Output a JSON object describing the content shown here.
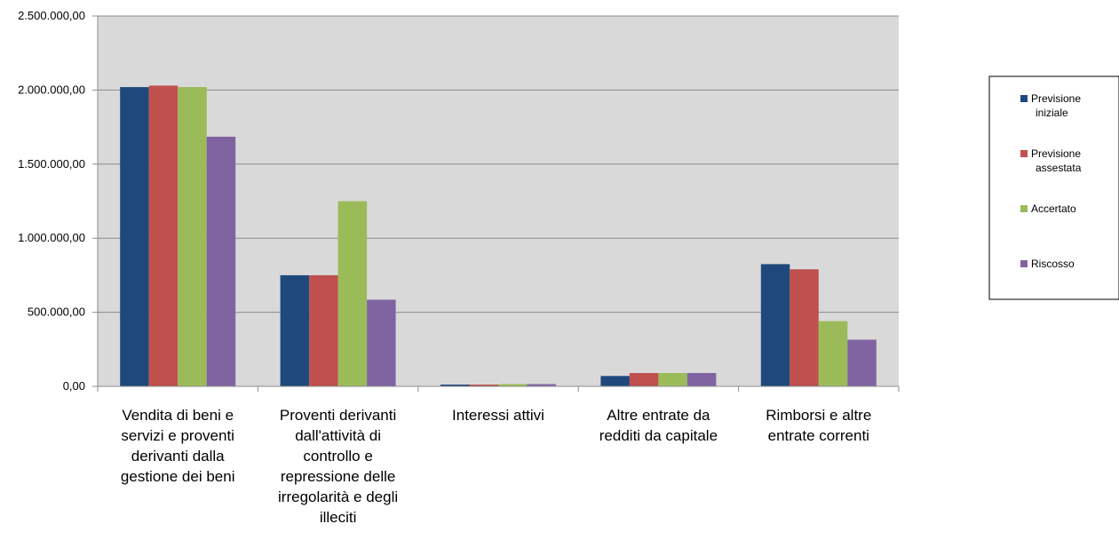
{
  "chart_data": {
    "type": "bar",
    "title": "",
    "xlabel": "",
    "ylabel": "",
    "ylim": [
      0,
      2500000
    ],
    "yticks": [
      {
        "value": 0,
        "label": "0,00"
      },
      {
        "value": 500000,
        "label": "500.000,00"
      },
      {
        "value": 1000000,
        "label": "1.000.000,00"
      },
      {
        "value": 1500000,
        "label": "1.500.000,00"
      },
      {
        "value": 2000000,
        "label": "2.000.000,00"
      },
      {
        "value": 2500000,
        "label": "2.500.000,00"
      }
    ],
    "categories": [
      [
        "Vendita di beni e",
        "servizi e proventi",
        "derivanti dalla",
        "gestione dei beni"
      ],
      [
        "Proventi derivanti",
        "dall'attività di",
        "controllo e",
        "repressione delle",
        "irregolarità e degli",
        "illeciti"
      ],
      [
        "Interessi attivi"
      ],
      [
        "Altre entrate da",
        "redditi da capitale"
      ],
      [
        "Rimborsi e altre",
        "entrate correnti"
      ]
    ],
    "series": [
      {
        "name": [
          "Previsione",
          "iniziale"
        ],
        "color": "#1F497D",
        "values": [
          2020000,
          750000,
          12000,
          70000,
          825000
        ]
      },
      {
        "name": [
          "Previsione",
          "assestata"
        ],
        "color": "#C0504D",
        "values": [
          2030000,
          750000,
          12000,
          90000,
          790000
        ]
      },
      {
        "name": [
          "Accertato"
        ],
        "color": "#9BBB59",
        "values": [
          2020000,
          1250000,
          15000,
          90000,
          440000
        ]
      },
      {
        "name": [
          "Riscosso"
        ],
        "color": "#8064A2",
        "values": [
          1685000,
          585000,
          15000,
          90000,
          315000
        ]
      }
    ],
    "grid": true,
    "legend_position": "right",
    "plot_background": "#D9D9D9"
  }
}
